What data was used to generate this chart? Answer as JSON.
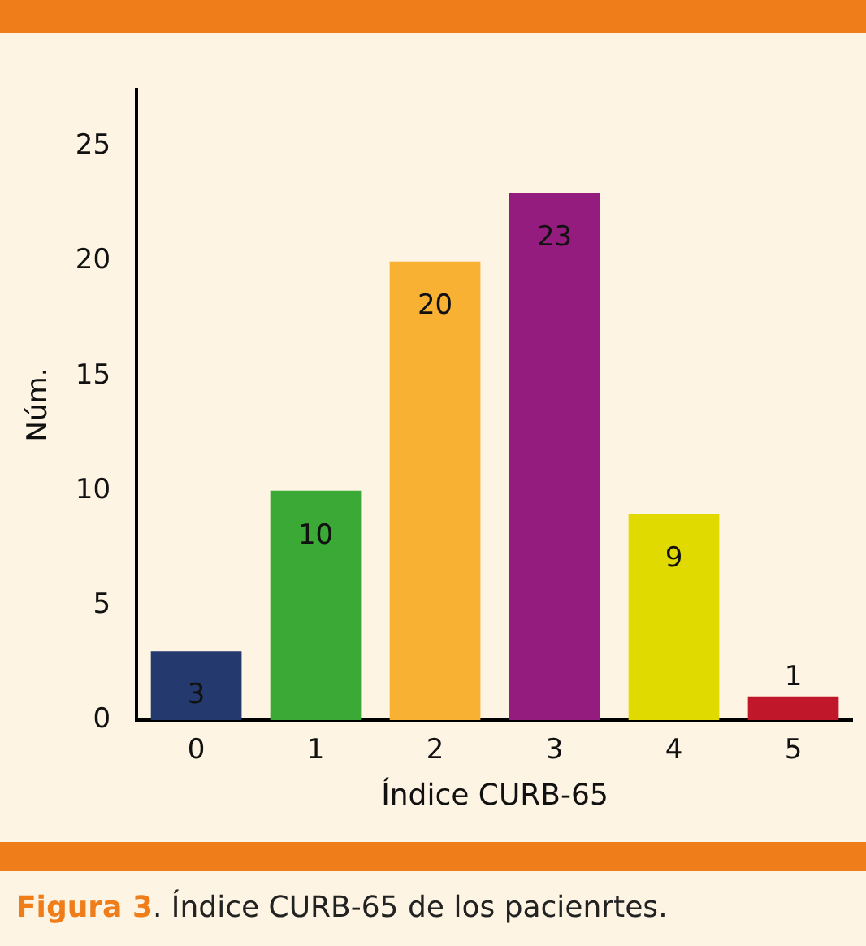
{
  "chart_data": {
    "type": "bar",
    "xlabel": "Índice CURB-65",
    "ylabel": "Núm.",
    "categories": [
      "0",
      "1",
      "2",
      "3",
      "4",
      "5"
    ],
    "values": [
      3,
      10,
      20,
      23,
      9,
      1
    ],
    "colors": [
      "#243a6e",
      "#3aa935",
      "#f8b133",
      "#951c7f",
      "#e1da00",
      "#c0182a"
    ],
    "ylim": [
      0,
      27.5
    ],
    "yticks": [
      0,
      5,
      10,
      15,
      20,
      25
    ],
    "grid": false,
    "data_labels": true,
    "annotations": [
      "Figura 3. Índice CURB-65 de los pacienrtes."
    ]
  }
}
